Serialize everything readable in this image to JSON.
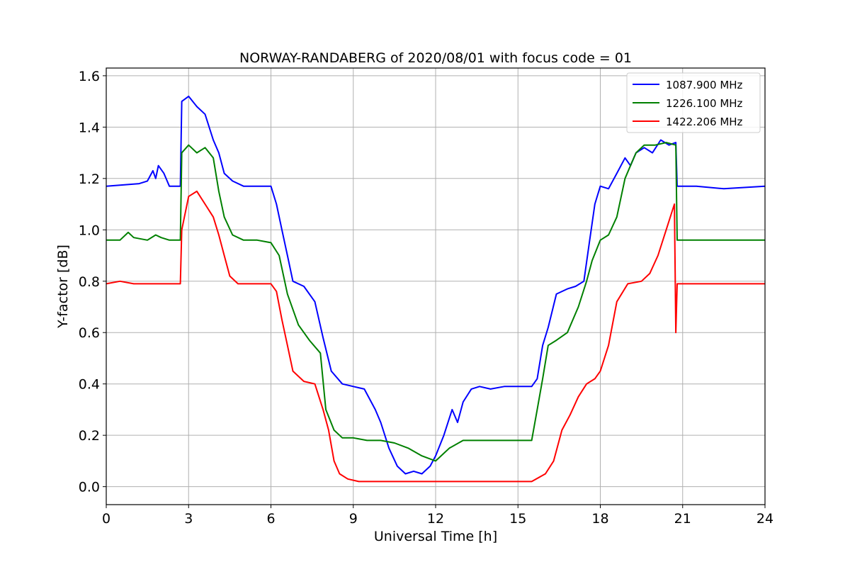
{
  "chart_data": {
    "type": "line",
    "title": "NORWAY-RANDABERG of 2020/08/01 with focus code = 01",
    "xlabel": "Universal Time [h]",
    "ylabel": "Y-factor [dB]",
    "xlim": [
      0,
      24
    ],
    "ylim": [
      -0.07,
      1.63
    ],
    "xticks": [
      0,
      3,
      6,
      9,
      12,
      15,
      18,
      21,
      24
    ],
    "yticks": [
      0.0,
      0.2,
      0.4,
      0.6,
      0.8,
      1.0,
      1.2,
      1.4,
      1.6
    ],
    "ytick_labels": [
      "0.0",
      "0.2",
      "0.4",
      "0.6",
      "0.8",
      "1.0",
      "1.2",
      "1.4",
      "1.6"
    ],
    "grid": true,
    "legend_position": "top-right",
    "series": [
      {
        "name": "1087.900 MHz",
        "color": "#0000ff",
        "x": [
          0,
          1.2,
          1.5,
          1.7,
          1.8,
          1.9,
          2.1,
          2.3,
          2.7,
          2.75,
          3.0,
          3.3,
          3.6,
          3.9,
          4.1,
          4.3,
          4.6,
          5.0,
          5.5,
          6.0,
          6.2,
          6.4,
          6.6,
          6.8,
          7.2,
          7.6,
          7.9,
          8.2,
          8.6,
          9.0,
          9.4,
          9.8,
          10.0,
          10.3,
          10.6,
          10.9,
          11.2,
          11.5,
          11.8,
          12.0,
          12.3,
          12.6,
          12.8,
          13.0,
          13.3,
          13.6,
          14.0,
          14.5,
          15.0,
          15.5,
          15.7,
          15.9,
          16.1,
          16.4,
          16.8,
          17.1,
          17.4,
          17.6,
          17.8,
          18.0,
          18.3,
          18.6,
          18.9,
          19.1,
          19.3,
          19.6,
          19.9,
          20.2,
          20.5,
          20.75,
          20.8,
          21.5,
          22.5,
          24
        ],
        "values": [
          1.17,
          1.18,
          1.19,
          1.23,
          1.2,
          1.25,
          1.22,
          1.17,
          1.17,
          1.5,
          1.52,
          1.48,
          1.45,
          1.35,
          1.3,
          1.22,
          1.19,
          1.17,
          1.17,
          1.17,
          1.1,
          1.0,
          0.9,
          0.8,
          0.78,
          0.72,
          0.58,
          0.45,
          0.4,
          0.39,
          0.38,
          0.3,
          0.25,
          0.15,
          0.08,
          0.05,
          0.06,
          0.05,
          0.08,
          0.12,
          0.2,
          0.3,
          0.25,
          0.33,
          0.38,
          0.39,
          0.38,
          0.39,
          0.39,
          0.39,
          0.42,
          0.55,
          0.62,
          0.75,
          0.77,
          0.78,
          0.8,
          0.95,
          1.1,
          1.17,
          1.16,
          1.22,
          1.28,
          1.25,
          1.3,
          1.32,
          1.3,
          1.35,
          1.33,
          1.34,
          1.17,
          1.17,
          1.16,
          1.17
        ]
      },
      {
        "name": "1226.100 MHz",
        "color": "#008000",
        "x": [
          0,
          0.5,
          0.8,
          1.0,
          1.5,
          1.8,
          2.0,
          2.3,
          2.7,
          2.75,
          3.0,
          3.3,
          3.6,
          3.9,
          4.1,
          4.3,
          4.6,
          5.0,
          5.5,
          6.0,
          6.3,
          6.6,
          7.0,
          7.4,
          7.8,
          8.0,
          8.3,
          8.6,
          9.0,
          9.5,
          10.0,
          10.5,
          11.0,
          11.5,
          12.0,
          12.5,
          13.0,
          13.5,
          14.0,
          14.5,
          15.0,
          15.5,
          15.7,
          15.9,
          16.1,
          16.4,
          16.8,
          17.2,
          17.5,
          17.7,
          18.0,
          18.3,
          18.6,
          18.9,
          19.1,
          19.3,
          19.6,
          20.0,
          20.4,
          20.75,
          20.8,
          21.5,
          22.5,
          24
        ],
        "values": [
          0.96,
          0.96,
          0.99,
          0.97,
          0.96,
          0.98,
          0.97,
          0.96,
          0.96,
          1.3,
          1.33,
          1.3,
          1.32,
          1.28,
          1.15,
          1.05,
          0.98,
          0.96,
          0.96,
          0.95,
          0.9,
          0.75,
          0.63,
          0.57,
          0.52,
          0.3,
          0.22,
          0.19,
          0.19,
          0.18,
          0.18,
          0.17,
          0.15,
          0.12,
          0.1,
          0.15,
          0.18,
          0.18,
          0.18,
          0.18,
          0.18,
          0.18,
          0.3,
          0.42,
          0.55,
          0.57,
          0.6,
          0.7,
          0.8,
          0.88,
          0.96,
          0.98,
          1.05,
          1.2,
          1.25,
          1.3,
          1.33,
          1.33,
          1.34,
          1.33,
          0.96,
          0.96,
          0.96,
          0.96
        ]
      },
      {
        "name": "1422.206 MHz",
        "color": "#ff0000",
        "x": [
          0,
          0.5,
          1.0,
          1.5,
          2.0,
          2.3,
          2.7,
          2.75,
          3.0,
          3.3,
          3.6,
          3.9,
          4.1,
          4.3,
          4.5,
          4.8,
          5.2,
          5.6,
          6.0,
          6.2,
          6.4,
          6.6,
          6.8,
          7.2,
          7.6,
          7.9,
          8.1,
          8.3,
          8.5,
          8.8,
          9.2,
          9.6,
          10.0,
          10.5,
          11.0,
          11.5,
          12.0,
          12.5,
          13.0,
          13.5,
          14.0,
          14.5,
          15.0,
          15.5,
          16.0,
          16.3,
          16.6,
          16.9,
          17.2,
          17.5,
          17.8,
          18.0,
          18.3,
          18.6,
          19.0,
          19.5,
          19.8,
          20.1,
          20.4,
          20.7,
          20.75,
          20.8,
          21.5,
          22.5,
          24
        ],
        "values": [
          0.79,
          0.8,
          0.79,
          0.79,
          0.79,
          0.79,
          0.79,
          1.0,
          1.13,
          1.15,
          1.1,
          1.05,
          0.98,
          0.9,
          0.82,
          0.79,
          0.79,
          0.79,
          0.79,
          0.76,
          0.65,
          0.55,
          0.45,
          0.41,
          0.4,
          0.3,
          0.22,
          0.1,
          0.05,
          0.03,
          0.02,
          0.02,
          0.02,
          0.02,
          0.02,
          0.02,
          0.02,
          0.02,
          0.02,
          0.02,
          0.02,
          0.02,
          0.02,
          0.02,
          0.05,
          0.1,
          0.22,
          0.28,
          0.35,
          0.4,
          0.42,
          0.45,
          0.55,
          0.72,
          0.79,
          0.8,
          0.83,
          0.9,
          1.0,
          1.1,
          0.6,
          0.79,
          0.79,
          0.79,
          0.79
        ]
      }
    ]
  }
}
